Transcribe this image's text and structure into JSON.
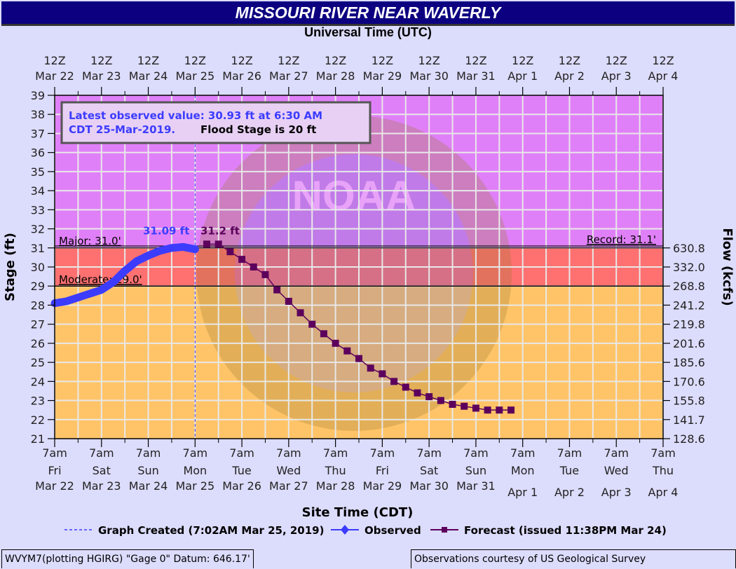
{
  "title": "MISSOURI RIVER NEAR WAVERLY",
  "top_axis_title": "Universal Time (UTC)",
  "bottom_axis_title": "Site Time (CDT)",
  "left_axis_title": "Stage (ft)",
  "right_axis_title": "Flow (kcfs)",
  "info_box": {
    "line1": "Latest observed value: 30.93 ft at 6:30 AM",
    "line2_blue": "CDT 25-Mar-2019.",
    "line2_black": "Flood Stage is 20 ft"
  },
  "labels": {
    "obs_peak": "31.09 ft",
    "fcst_peak": "31.2 ft",
    "major": "Major: 31.0'",
    "moderate": "Moderate: 29.0'",
    "record": "Record: 31.1'"
  },
  "legend": {
    "graph_created": "Graph Created (7:02AM Mar 25, 2019)",
    "observed": "Observed",
    "forecast": "Forecast (issued 11:38PM Mar 24)"
  },
  "footer": {
    "left": "WVYM7(plotting HGIRG) \"Gage 0\" Datum: 646.17'",
    "right": "Observations courtesy of US Geological Survey"
  },
  "colors": {
    "major_zone": "#e080f8",
    "moderate_zone": "#ff7070",
    "minor_zone": "#ffc468",
    "observed": "#3c3cff",
    "forecast": "#5c005c",
    "title_bg": "#0c0080",
    "background": "#dcdcfc"
  },
  "chart_data": {
    "type": "line",
    "title": "MISSOURI RIVER NEAR WAVERLY",
    "xlabel": "Site Time (CDT)",
    "ylabel": "Stage (ft)",
    "y2label": "Flow (kcfs)",
    "ylim": [
      21,
      39
    ],
    "grid": true,
    "legend_position": "bottom",
    "top_ticks": [
      [
        "12Z",
        "Mar 22"
      ],
      [
        "12Z",
        "Mar 23"
      ],
      [
        "12Z",
        "Mar 24"
      ],
      [
        "12Z",
        "Mar 25"
      ],
      [
        "12Z",
        "Mar 26"
      ],
      [
        "12Z",
        "Mar 27"
      ],
      [
        "12Z",
        "Mar 28"
      ],
      [
        "12Z",
        "Mar 29"
      ],
      [
        "12Z",
        "Mar 30"
      ],
      [
        "12Z",
        "Mar 31"
      ],
      [
        "12Z",
        "Apr  1"
      ],
      [
        "12Z",
        "Apr  2"
      ],
      [
        "12Z",
        "Apr  3"
      ],
      [
        "12Z",
        "Apr  4"
      ]
    ],
    "bottom_ticks": [
      [
        "7am",
        "Fri",
        "Mar 22"
      ],
      [
        "7am",
        "Sat",
        "Mar 23"
      ],
      [
        "7am",
        "Sun",
        "Mar 24"
      ],
      [
        "7am",
        "Mon",
        "Mar 25"
      ],
      [
        "7am",
        "Tue",
        "Mar 26"
      ],
      [
        "7am",
        "Wed",
        "Mar 27"
      ],
      [
        "7am",
        "Thu",
        "Mar 28"
      ],
      [
        "7am",
        "Fri",
        "Mar 29"
      ],
      [
        "7am",
        "Sat",
        "Mar 30"
      ],
      [
        "7am",
        "Sun",
        "Mar 31"
      ],
      [
        "7am",
        "Mon",
        "Apr 1"
      ],
      [
        "7am",
        "Tue",
        "Apr 2"
      ],
      [
        "7am",
        "Wed",
        "Apr 3"
      ],
      [
        "7am",
        "Thu",
        "Apr 4"
      ]
    ],
    "y_ticks": [
      21,
      22,
      23,
      24,
      25,
      26,
      27,
      28,
      29,
      30,
      31,
      32,
      33,
      34,
      35,
      36,
      37,
      38,
      39
    ],
    "flow_ticks": [
      {
        "stage": 22,
        "flow": "141.7"
      },
      {
        "stage": 23,
        "flow": "155.8"
      },
      {
        "stage": 24,
        "flow": "170.6"
      },
      {
        "stage": 25,
        "flow": "185.6"
      },
      {
        "stage": 26,
        "flow": "201.6"
      },
      {
        "stage": 27,
        "flow": "219.8"
      },
      {
        "stage": 28,
        "flow": "241.2"
      },
      {
        "stage": 29,
        "flow": "268.8"
      },
      {
        "stage": 30,
        "flow": "332.0"
      },
      {
        "stage": 31,
        "flow": "630.8"
      },
      {
        "stage": 21,
        "flow": "128.6"
      }
    ],
    "thresholds": {
      "flood_stage": 20,
      "moderate": 29.0,
      "major": 31.0,
      "record": 31.1
    },
    "series": [
      {
        "name": "Observed",
        "x_days_from_mar22_7am": [
          0,
          0.25,
          0.5,
          0.75,
          1.0,
          1.25,
          1.5,
          1.75,
          2.0,
          2.25,
          2.5,
          2.75,
          3.0
        ],
        "values": [
          28.1,
          28.2,
          28.4,
          28.6,
          28.8,
          29.2,
          29.8,
          30.3,
          30.6,
          30.85,
          31.0,
          31.05,
          30.93
        ]
      },
      {
        "name": "Forecast",
        "x_days_from_mar22_7am": [
          3.25,
          3.5,
          3.75,
          4.0,
          4.25,
          4.5,
          4.75,
          5.0,
          5.25,
          5.5,
          5.75,
          6.0,
          6.25,
          6.5,
          6.75,
          7.0,
          7.25,
          7.5,
          7.75,
          8.0,
          8.25,
          8.5,
          8.75,
          9.0,
          9.25,
          9.5,
          9.75
        ],
        "values": [
          31.2,
          31.2,
          30.8,
          30.4,
          30.0,
          29.6,
          28.8,
          28.2,
          27.6,
          27.0,
          26.5,
          26.0,
          25.6,
          25.2,
          24.7,
          24.4,
          24.0,
          23.7,
          23.4,
          23.2,
          23.0,
          22.8,
          22.7,
          22.6,
          22.5,
          22.5,
          22.5
        ]
      }
    ],
    "annotations": [
      "31.09 ft",
      "31.2 ft",
      "Major: 31.0'",
      "Moderate: 29.0'",
      "Record: 31.1'",
      "Latest observed value: 30.93 ft at 6:30 AM CDT 25-Mar-2019. Flood Stage is 20 ft"
    ]
  }
}
